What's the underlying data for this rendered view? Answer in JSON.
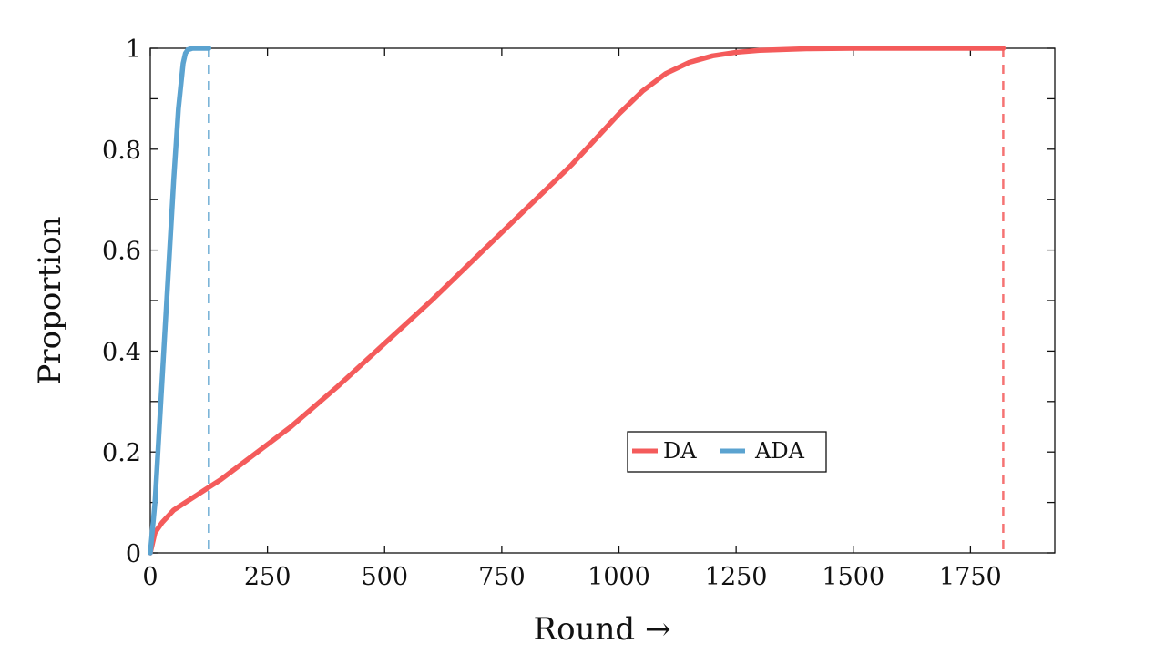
{
  "chart_data": {
    "type": "line",
    "xlabel": "Round →",
    "ylabel": "Proportion",
    "xlim": [
      0,
      1930
    ],
    "ylim": [
      0,
      1
    ],
    "xticks": [
      0,
      250,
      500,
      750,
      1000,
      1250,
      1500,
      1750
    ],
    "xtick_labels": [
      "0",
      "250",
      "500",
      "750",
      "1000",
      "1250",
      "1500",
      "1750"
    ],
    "yticks": [
      0,
      0.2,
      0.4,
      0.6,
      0.8,
      1
    ],
    "ytick_labels": [
      "0",
      "0.2",
      "0.4",
      "0.6",
      "0.8",
      "1"
    ],
    "grid": false,
    "legend_position": "lower-right-center",
    "series": [
      {
        "name": "DA",
        "color": "#f45b5b",
        "x": [
          0,
          10,
          25,
          50,
          75,
          100,
          125,
          150,
          200,
          250,
          300,
          400,
          500,
          600,
          700,
          800,
          900,
          1000,
          1050,
          1100,
          1150,
          1200,
          1250,
          1300,
          1400,
          1500,
          1820
        ],
        "y": [
          0,
          0.04,
          0.06,
          0.085,
          0.1,
          0.115,
          0.13,
          0.145,
          0.18,
          0.215,
          0.25,
          0.33,
          0.415,
          0.5,
          0.59,
          0.68,
          0.77,
          0.87,
          0.915,
          0.95,
          0.972,
          0.985,
          0.992,
          0.996,
          0.999,
          1.0,
          1.0
        ],
        "end_marker_x": 1820
      },
      {
        "name": "ADA",
        "color": "#5ba3d0",
        "x": [
          0,
          10,
          20,
          30,
          40,
          50,
          60,
          70,
          75,
          80,
          90,
          100,
          125
        ],
        "y": [
          0,
          0.1,
          0.26,
          0.42,
          0.58,
          0.74,
          0.88,
          0.97,
          0.99,
          0.997,
          1.0,
          1.0,
          1.0
        ],
        "end_marker_x": 125
      }
    ]
  }
}
